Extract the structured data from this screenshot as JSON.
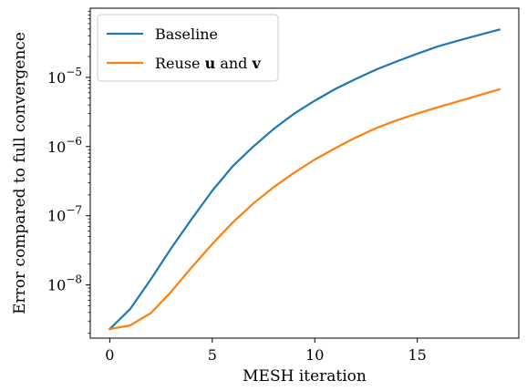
{
  "chart_data": {
    "type": "line",
    "title": "",
    "xlabel": "MESH iteration",
    "ylabel": "Error compared to full convergence",
    "xscale": "linear",
    "yscale": "log",
    "xlim": [
      -0.95,
      19.95
    ],
    "ylim": [
      1.7e-09,
      0.0001
    ],
    "x_ticks": [
      0,
      5,
      10,
      15
    ],
    "y_ticks": [
      {
        "value": 1e-08,
        "base": "10",
        "exp": "−8"
      },
      {
        "value": 1e-07,
        "base": "10",
        "exp": "−7"
      },
      {
        "value": 1e-06,
        "base": "10",
        "exp": "−6"
      },
      {
        "value": 1e-05,
        "base": "10",
        "exp": "−5"
      }
    ],
    "grid": false,
    "legend_position": "top-left",
    "x": [
      0,
      1,
      2,
      3,
      4,
      5,
      6,
      7,
      8,
      9,
      10,
      11,
      12,
      13,
      14,
      15,
      16,
      17,
      18,
      19
    ],
    "series": [
      {
        "name": "Baseline",
        "legend_parts": [
          {
            "text": "Baseline",
            "bold": false
          }
        ],
        "color": "#1f77b4",
        "values": [
          2.3e-09,
          4.5e-09,
          1.2e-08,
          3.4e-08,
          9e-08,
          2.3e-07,
          5.2e-07,
          1e-06,
          1.8e-06,
          3e-06,
          4.6e-06,
          6.8e-06,
          9.5e-06,
          1.3e-05,
          1.7e-05,
          2.2e-05,
          2.8e-05,
          3.4e-05,
          4.1e-05,
          4.9e-05
        ]
      },
      {
        "name": "Reuse u and v",
        "legend_parts": [
          {
            "text": "Reuse ",
            "bold": false
          },
          {
            "text": "u",
            "bold": true
          },
          {
            "text": " and ",
            "bold": false
          },
          {
            "text": "v",
            "bold": true
          }
        ],
        "color": "#ff7f0e",
        "values": [
          2.3e-09,
          2.6e-09,
          3.9e-09,
          8e-09,
          1.8e-08,
          3.9e-08,
          8e-08,
          1.5e-07,
          2.6e-07,
          4.2e-07,
          6.5e-07,
          9.5e-07,
          1.35e-06,
          1.85e-06,
          2.4e-06,
          3e-06,
          3.7e-06,
          4.5e-06,
          5.5e-06,
          6.7e-06
        ]
      }
    ]
  }
}
